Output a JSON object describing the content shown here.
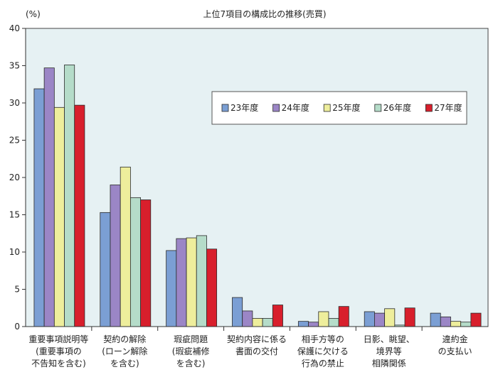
{
  "chart_data": {
    "type": "bar",
    "title": "上位7項目の構成比の推移(売買)",
    "ylabel": "(%)",
    "ylim": [
      0,
      40
    ],
    "yticks": [
      "0",
      "5",
      "10",
      "15",
      "20",
      "25",
      "30",
      "35",
      "40"
    ],
    "grid": false,
    "legend_position": "top-right",
    "categories": [
      [
        "重要事項説明等",
        "(重要事項の",
        "不告知を含む)"
      ],
      [
        "契約の解除",
        "(ローン解除",
        "を含む)"
      ],
      [
        "瑕疵問題",
        "(瑕疵補修",
        "を含む)"
      ],
      [
        "契約内容に係る",
        "書面の交付"
      ],
      [
        "相手方等の",
        "保護に欠ける",
        "行為の禁止"
      ],
      [
        "日影、眺望、",
        "境界等",
        "相隣関係"
      ],
      [
        "違約金",
        "の支払い"
      ]
    ],
    "series": [
      {
        "name": "23年度",
        "color": "#7b9fd4",
        "values": [
          31.9,
          15.3,
          10.2,
          3.9,
          0.7,
          2.0,
          1.8
        ]
      },
      {
        "name": "24年度",
        "color": "#9b86c6",
        "values": [
          34.7,
          19.0,
          11.8,
          2.1,
          0.6,
          1.8,
          1.3
        ]
      },
      {
        "name": "25年度",
        "color": "#eeee9c",
        "values": [
          29.4,
          21.4,
          11.9,
          1.1,
          2.0,
          2.4,
          0.7
        ]
      },
      {
        "name": "26年度",
        "color": "#b5dcc9",
        "values": [
          35.1,
          17.3,
          12.2,
          1.1,
          1.1,
          0.2,
          0.6
        ]
      },
      {
        "name": "27年度",
        "color": "#d81f2c",
        "values": [
          29.7,
          17.0,
          10.4,
          2.9,
          2.7,
          2.5,
          1.8
        ]
      }
    ],
    "plot_background": "#e6f1f3"
  }
}
